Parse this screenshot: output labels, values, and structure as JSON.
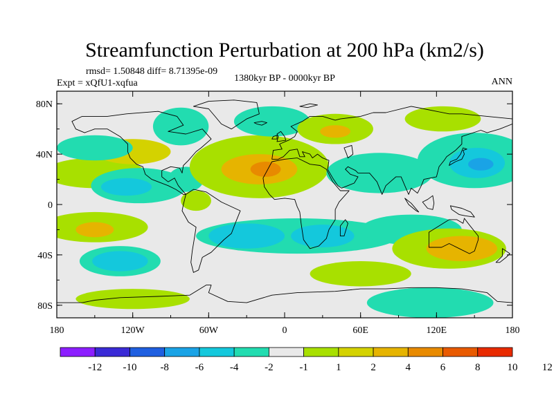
{
  "chart_data": {
    "type": "heatmap",
    "title": "Streamfunction Perturbation at 200 hPa (km2/s)",
    "stats_label": "rmsd= 1.50848 diff= 8.71395e-09",
    "expt_label": "Expt = xQfU1-xqfua",
    "period_label": "1380kyr BP - 0000kyr BP",
    "season_label": "ANN",
    "x_range": [
      -180,
      180
    ],
    "y_range": [
      -90,
      90
    ],
    "x_ticks": [
      {
        "value": -180,
        "label": "180"
      },
      {
        "value": -120,
        "label": "120W"
      },
      {
        "value": -60,
        "label": "60W"
      },
      {
        "value": 0,
        "label": "0"
      },
      {
        "value": 60,
        "label": "60E"
      },
      {
        "value": 120,
        "label": "120E"
      },
      {
        "value": 180,
        "label": "180"
      }
    ],
    "y_ticks": [
      {
        "value": 80,
        "label": "80N"
      },
      {
        "value": 40,
        "label": "40N"
      },
      {
        "value": 0,
        "label": "0"
      },
      {
        "value": -40,
        "label": "40S"
      },
      {
        "value": -80,
        "label": "80S"
      }
    ],
    "colorbar": {
      "colors": [
        "#8c1eff",
        "#3a2ad6",
        "#1f5fe0",
        "#1aa3e6",
        "#14c8dc",
        "#22dcb0",
        "#e9e9e9",
        "#a8e000",
        "#d4d200",
        "#e6b400",
        "#e88a00",
        "#e85a00",
        "#e82a00"
      ],
      "labels": [
        "-12",
        "-10",
        "-8",
        "-6",
        "-4",
        "-2",
        "-1",
        "1",
        "2",
        "4",
        "6",
        "8",
        "10",
        "12"
      ]
    },
    "anomaly_regions": [
      {
        "lon": -150,
        "lat": 25,
        "rlon": 40,
        "rlat": 12,
        "value": 2
      },
      {
        "lon": -120,
        "lat": 42,
        "rlon": 30,
        "rlat": 10,
        "value": 3
      },
      {
        "lon": -115,
        "lat": 15,
        "rlon": 38,
        "rlat": 14,
        "value": -2
      },
      {
        "lon": -125,
        "lat": 14,
        "rlon": 20,
        "rlat": 7,
        "value": -4
      },
      {
        "lon": -150,
        "lat": 45,
        "rlon": 30,
        "rlat": 10,
        "value": -2
      },
      {
        "lon": -82,
        "lat": 62,
        "rlon": 22,
        "rlat": 15,
        "value": -2
      },
      {
        "lon": -78,
        "lat": 20,
        "rlon": 14,
        "rlat": 10,
        "value": -2
      },
      {
        "lon": -70,
        "lat": 3,
        "rlon": 12,
        "rlat": 8,
        "value": 2
      },
      {
        "lon": -20,
        "lat": 30,
        "rlon": 55,
        "rlat": 25,
        "value": 2
      },
      {
        "lon": -20,
        "lat": 28,
        "rlon": 30,
        "rlat": 12,
        "value": 4
      },
      {
        "lon": -15,
        "lat": 28,
        "rlon": 12,
        "rlat": 6,
        "value": 6
      },
      {
        "lon": -10,
        "lat": 66,
        "rlon": 30,
        "rlat": 12,
        "value": -2
      },
      {
        "lon": 40,
        "lat": 60,
        "rlon": 30,
        "rlat": 12,
        "value": 2
      },
      {
        "lon": 40,
        "lat": 58,
        "rlon": 12,
        "rlat": 5,
        "value": 4
      },
      {
        "lon": 75,
        "lat": 25,
        "rlon": 42,
        "rlat": 16,
        "value": -2
      },
      {
        "lon": 125,
        "lat": 68,
        "rlon": 30,
        "rlat": 10,
        "value": 2
      },
      {
        "lon": 150,
        "lat": 35,
        "rlon": 45,
        "rlat": 22,
        "value": -2
      },
      {
        "lon": 152,
        "lat": 33,
        "rlon": 22,
        "rlat": 12,
        "value": -4
      },
      {
        "lon": 155,
        "lat": 32,
        "rlon": 10,
        "rlat": 5,
        "value": -6
      },
      {
        "lon": -150,
        "lat": -18,
        "rlon": 42,
        "rlat": 12,
        "value": 2
      },
      {
        "lon": -150,
        "lat": -20,
        "rlon": 15,
        "rlat": 6,
        "value": 4
      },
      {
        "lon": -130,
        "lat": -45,
        "rlon": 32,
        "rlat": 12,
        "value": -2
      },
      {
        "lon": -130,
        "lat": -45,
        "rlon": 22,
        "rlat": 8,
        "value": -4
      },
      {
        "lon": -120,
        "lat": -75,
        "rlon": 45,
        "rlat": 8,
        "value": 2
      },
      {
        "lon": 10,
        "lat": -25,
        "rlon": 80,
        "rlat": 14,
        "value": -2
      },
      {
        "lon": -30,
        "lat": -25,
        "rlon": 30,
        "rlat": 10,
        "value": -4
      },
      {
        "lon": 30,
        "lat": -25,
        "rlon": 25,
        "rlat": 9,
        "value": -4
      },
      {
        "lon": 100,
        "lat": -20,
        "rlon": 40,
        "rlat": 12,
        "value": -2
      },
      {
        "lon": 130,
        "lat": -35,
        "rlon": 45,
        "rlat": 16,
        "value": 2
      },
      {
        "lon": 140,
        "lat": -35,
        "rlon": 28,
        "rlat": 10,
        "value": 4
      },
      {
        "lon": 60,
        "lat": -55,
        "rlon": 40,
        "rlat": 10,
        "value": 2
      },
      {
        "lon": 115,
        "lat": -78,
        "rlon": 50,
        "rlat": 12,
        "value": -2
      }
    ]
  }
}
